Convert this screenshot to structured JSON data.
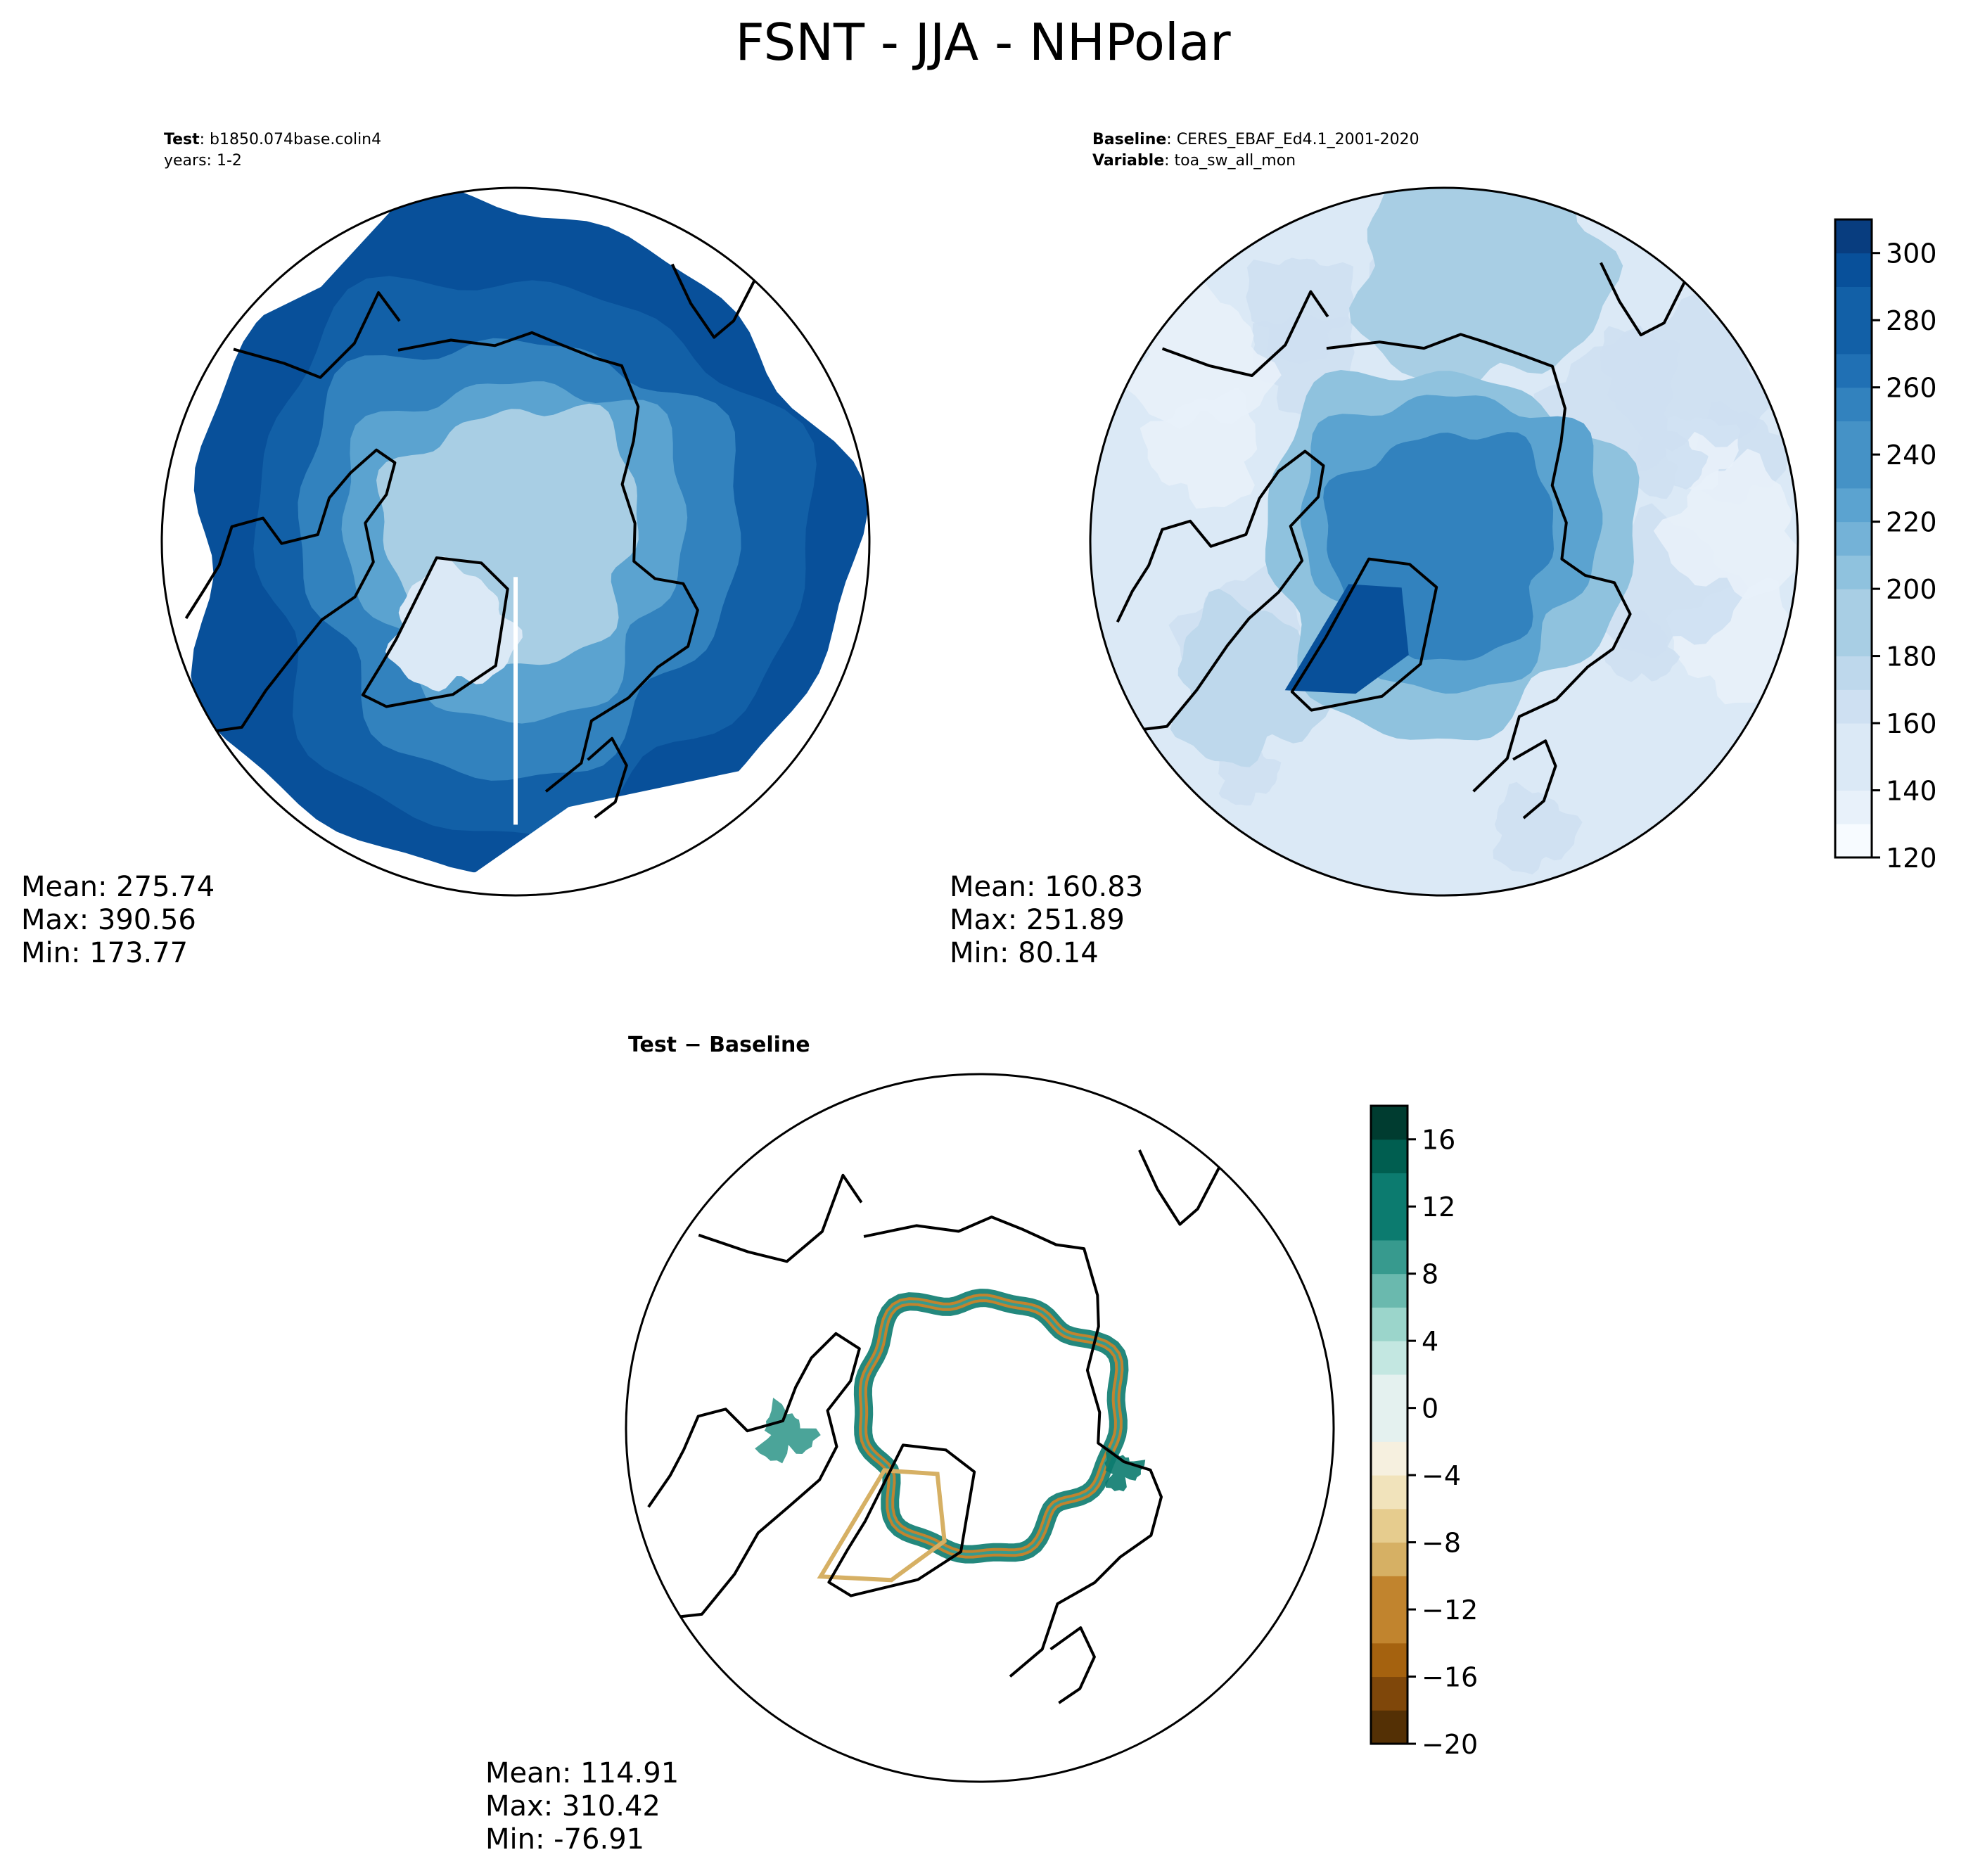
{
  "title": "FSNT - JJA - NHPolar",
  "panels": {
    "test": {
      "header_key": "Test",
      "header_value": "b1850.074base.colin4",
      "header_line2": "years: 1-2",
      "stats": {
        "mean": "Mean: 275.74",
        "max": "Max: 390.56",
        "min": "Min: 173.77"
      }
    },
    "baseline": {
      "header_key": "Baseline",
      "header_value": "CERES_EBAF_Ed4.1_2001-2020",
      "header_key2": "Variable",
      "header_value2": "toa_sw_all_mon",
      "stats": {
        "mean": "Mean: 160.83",
        "max": "Max: 251.89",
        "min": "Min: 80.14"
      }
    },
    "diff": {
      "title_a": "Test",
      "title_op": " − ",
      "title_b": "Baseline",
      "stats": {
        "mean": "Mean: 114.91",
        "max": "Max: 310.42",
        "min": "Min: -76.91"
      }
    }
  },
  "chart_data": [
    {
      "type": "heatmap",
      "panel": "test",
      "projection": "north-polar-stereographic",
      "colormap": "Blues",
      "levels": [
        120,
        130,
        140,
        150,
        160,
        170,
        180,
        190,
        200,
        210,
        220,
        230,
        240,
        250,
        260,
        270,
        280,
        290,
        300,
        310
      ],
      "colorbar_ticks": [
        120,
        140,
        160,
        180,
        200,
        220,
        240,
        260,
        280,
        300
      ],
      "stats": {
        "mean": 275.74,
        "max": 390.56,
        "min": 173.77
      }
    },
    {
      "type": "heatmap",
      "panel": "baseline",
      "projection": "north-polar-stereographic",
      "colormap": "Blues",
      "levels": [
        120,
        130,
        140,
        150,
        160,
        170,
        180,
        190,
        200,
        210,
        220,
        230,
        240,
        250,
        260,
        270,
        280,
        290,
        300,
        310
      ],
      "colorbar_ticks": [
        120,
        140,
        160,
        180,
        200,
        220,
        240,
        260,
        280,
        300
      ],
      "stats": {
        "mean": 160.83,
        "max": 251.89,
        "min": 80.14
      }
    },
    {
      "type": "heatmap",
      "panel": "diff",
      "projection": "north-polar-stereographic",
      "colormap": "BrBG",
      "levels": [
        -20,
        -18,
        -16,
        -14,
        -12,
        -10,
        -8,
        -6,
        -4,
        -2,
        0,
        2,
        4,
        6,
        8,
        10,
        12,
        14,
        16,
        18
      ],
      "colorbar_ticks": [
        -20,
        -16,
        -12,
        -8,
        -4,
        0,
        4,
        8,
        12,
        16
      ],
      "stats": {
        "mean": 114.91,
        "max": 310.42,
        "min": -76.91
      }
    }
  ],
  "colors": {
    "blues": [
      "#f7fbff",
      "#e8f1fa",
      "#dbe9f6",
      "#cee0f2",
      "#bed8ec",
      "#a8cee4",
      "#8fc2de",
      "#74b2d7",
      "#5ba3d0",
      "#4592c6",
      "#3282be",
      "#2070b4",
      "#1260a7",
      "#08509a",
      "#083d7f"
    ],
    "brbg": [
      "#543005",
      "#7f470a",
      "#a5620f",
      "#c1842e",
      "#d6b064",
      "#e6cc8e",
      "#f1e3bb",
      "#f6f0df",
      "#e4f1ef",
      "#c3e7e1",
      "#9bd5cb",
      "#6ab9ae",
      "#379a8e",
      "#0c7b6f",
      "#005e50",
      "#003c30"
    ]
  }
}
